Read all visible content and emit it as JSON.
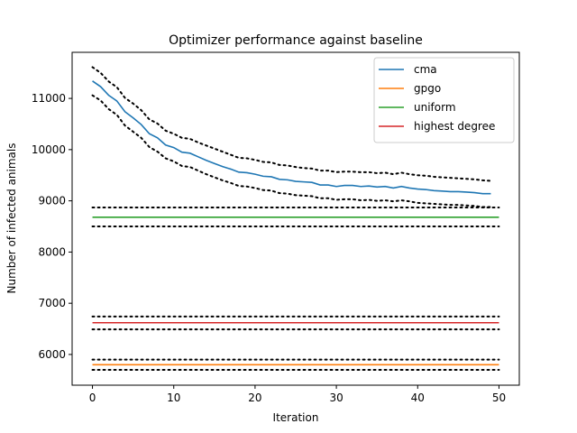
{
  "chart_data": {
    "type": "line",
    "title": "Optimizer performance against baseline",
    "xlabel": "Iteration",
    "ylabel": "Number of infected animals",
    "xlim": [
      -2.5,
      52.5
    ],
    "ylim": [
      5400,
      11900
    ],
    "xticks": [
      0,
      10,
      20,
      30,
      40,
      50
    ],
    "yticks": [
      6000,
      7000,
      8000,
      9000,
      10000,
      11000
    ],
    "grid": false,
    "legend_position": "top-right",
    "series": [
      {
        "name": "cma",
        "color": "#1f77b4",
        "x": [
          0,
          1,
          2,
          3,
          4,
          5,
          6,
          7,
          8,
          9,
          10,
          11,
          12,
          13,
          14,
          15,
          16,
          17,
          18,
          19,
          20,
          21,
          22,
          23,
          24,
          25,
          26,
          27,
          28,
          29,
          30,
          31,
          32,
          33,
          34,
          35,
          36,
          37,
          38,
          39,
          40,
          41,
          42,
          43,
          44,
          45,
          46,
          47,
          48,
          49
        ],
        "y": [
          11340,
          11230,
          11060,
          10950,
          10740,
          10620,
          10490,
          10310,
          10230,
          10090,
          10040,
          9950,
          9930,
          9860,
          9790,
          9730,
          9670,
          9620,
          9560,
          9550,
          9520,
          9480,
          9470,
          9420,
          9410,
          9380,
          9370,
          9360,
          9310,
          9310,
          9280,
          9300,
          9300,
          9280,
          9290,
          9270,
          9280,
          9250,
          9280,
          9250,
          9230,
          9220,
          9200,
          9190,
          9180,
          9180,
          9170,
          9160,
          9140,
          9140
        ],
        "upper": [
          11610,
          11500,
          11330,
          11220,
          11010,
          10900,
          10770,
          10590,
          10510,
          10370,
          10310,
          10230,
          10210,
          10140,
          10080,
          10020,
          9960,
          9900,
          9840,
          9830,
          9800,
          9760,
          9750,
          9700,
          9690,
          9660,
          9640,
          9630,
          9590,
          9590,
          9560,
          9570,
          9570,
          9560,
          9560,
          9540,
          9550,
          9520,
          9550,
          9520,
          9500,
          9490,
          9470,
          9460,
          9450,
          9440,
          9430,
          9420,
          9400,
          9390
        ],
        "lower": [
          11060,
          10960,
          10790,
          10680,
          10470,
          10350,
          10230,
          10050,
          9960,
          9830,
          9770,
          9680,
          9660,
          9590,
          9520,
          9460,
          9400,
          9350,
          9290,
          9280,
          9250,
          9210,
          9200,
          9150,
          9140,
          9110,
          9100,
          9090,
          9050,
          9050,
          9020,
          9030,
          9030,
          9010,
          9020,
          9000,
          9010,
          8990,
          9010,
          8990,
          8960,
          8950,
          8940,
          8930,
          8920,
          8920,
          8910,
          8900,
          8880,
          8880
        ]
      },
      {
        "name": "gpgo",
        "color": "#ff7f0e",
        "x": [
          0,
          50
        ],
        "y": [
          5800,
          5800
        ],
        "upper": [
          5900,
          5900
        ],
        "lower": [
          5700,
          5700
        ]
      },
      {
        "name": "uniform",
        "color": "#2ca02c",
        "x": [
          0,
          50
        ],
        "y": [
          8680,
          8680
        ],
        "upper": [
          8870,
          8870
        ],
        "lower": [
          8500,
          8500
        ]
      },
      {
        "name": "highest degree",
        "color": "#d62728",
        "x": [
          0,
          50
        ],
        "y": [
          6620,
          6620
        ],
        "upper": [
          6740,
          6740
        ],
        "lower": [
          6490,
          6490
        ]
      }
    ]
  }
}
